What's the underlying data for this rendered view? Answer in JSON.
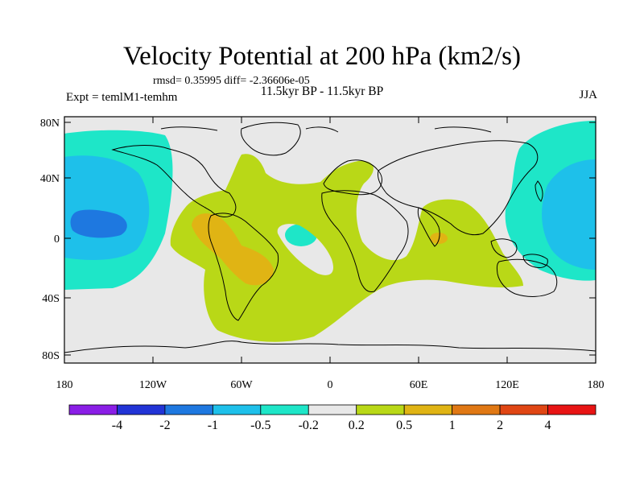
{
  "title": "Velocity Potential at 200 hPa (km2/s)",
  "stats": "rmsd= 0.35995 diff= -2.36606e-05",
  "subtitle": "11.5kyr BP - 11.5kyr BP",
  "experiment": "Expt = temlM1-temhm",
  "season": "JJA",
  "lat_labels": [
    "80N",
    "40N",
    "0",
    "40S",
    "80S"
  ],
  "lon_labels": [
    "180",
    "120W",
    "60W",
    "0",
    "60E",
    "120E",
    "180"
  ],
  "colorbar": {
    "colors": [
      "#8a1ee6",
      "#2234d6",
      "#1e78e0",
      "#1ec0ea",
      "#1ee6c8",
      "#e8e8e8",
      "#b9d817",
      "#e0b414",
      "#e07814",
      "#e04614",
      "#e81414"
    ],
    "labels": [
      "-4",
      "-2",
      "-1",
      "-0.5",
      "-0.2",
      "0.2",
      "0.5",
      "1",
      "2",
      "4"
    ]
  },
  "map_colors": {
    "background": "#e8e8e8",
    "coast": "#000000"
  }
}
